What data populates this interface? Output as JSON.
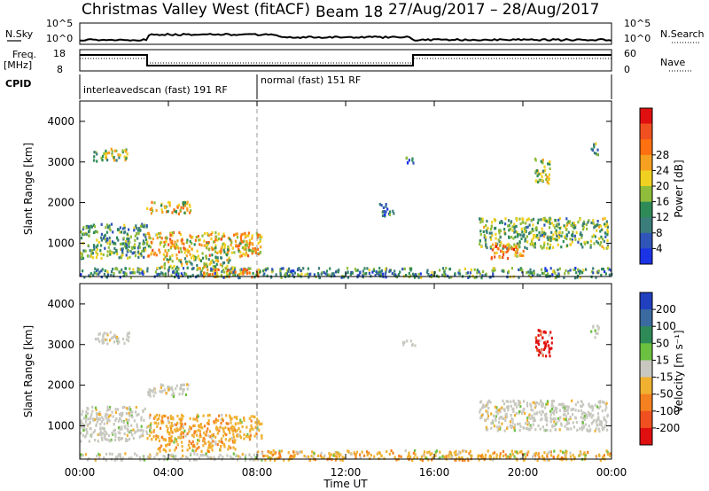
{
  "header": {
    "title": "Christmas Valley West (fitACF)",
    "beam": "Beam 18",
    "date_range": "27/Aug/2017 – 28/Aug/2017"
  },
  "summary_panels": {
    "nsky_label": "N.Sky",
    "nsky_ticks": [
      "10^5",
      "10^0"
    ],
    "nsearch_label": "N.Search",
    "nsearch_ticks": [
      "10^5",
      "10^0"
    ],
    "freq_label": [
      "Freq.",
      "[MHz]"
    ],
    "freq_ticks": [
      "18",
      "8"
    ],
    "nave_label": "Nave",
    "nave_ticks": [
      "60",
      "0"
    ],
    "cpid_label": "CPID",
    "cpid_modes": [
      {
        "label": "interleavedscan (fast) 191 RF",
        "start_hour": 0,
        "end_hour": 8
      },
      {
        "label": "normal (fast) 151 RF",
        "start_hour": 8,
        "end_hour": 24
      }
    ]
  },
  "chart_data": [
    {
      "type": "heatmap",
      "name": "power",
      "ylabel": "Slant Range [km]",
      "xlabel": "",
      "ylim": [
        180,
        4500
      ],
      "xlim_hours": [
        0,
        24
      ],
      "yticks": [
        1000,
        2000,
        3000,
        4000
      ],
      "colorbar": {
        "title": "Power [dB]",
        "ticks": [
          "4",
          "8",
          "12",
          "16",
          "20",
          "24",
          "28"
        ],
        "colors": [
          "#1a33e6",
          "#2f55b8",
          "#3a7d7a",
          "#2e8b57",
          "#8fbc3a",
          "#f0d020",
          "#f5a020",
          "#ff7010",
          "#f05020",
          "#e01010"
        ]
      },
      "regions": [
        {
          "t0": 0.6,
          "t1": 2.2,
          "r0": 3050,
          "r1": 3350,
          "level": 0.45
        },
        {
          "t0": 0.0,
          "t1": 3.0,
          "r0": 650,
          "r1": 1500,
          "level": 0.35
        },
        {
          "t0": 3.0,
          "t1": 8.2,
          "r0": 700,
          "r1": 1300,
          "level": 0.6
        },
        {
          "t0": 3.0,
          "t1": 5.0,
          "r0": 1750,
          "r1": 2050,
          "level": 0.55
        },
        {
          "t0": 3.5,
          "t1": 7.0,
          "r0": 400,
          "r1": 700,
          "level": 0.45
        },
        {
          "t0": 0.0,
          "t1": 24.0,
          "r0": 180,
          "r1": 420,
          "level": 0.3
        },
        {
          "t0": 5.5,
          "t1": 8.2,
          "r0": 200,
          "r1": 400,
          "level": 0.65
        },
        {
          "t0": 14.5,
          "t1": 15.1,
          "r0": 3000,
          "r1": 3150,
          "level": 0.3
        },
        {
          "t0": 13.5,
          "t1": 14.2,
          "r0": 1700,
          "r1": 2000,
          "level": 0.25
        },
        {
          "t0": 18.0,
          "t1": 23.8,
          "r0": 900,
          "r1": 1650,
          "level": 0.4
        },
        {
          "t0": 18.5,
          "t1": 20.0,
          "r0": 650,
          "r1": 1000,
          "level": 0.7
        },
        {
          "t0": 20.5,
          "t1": 21.2,
          "r0": 2500,
          "r1": 3200,
          "level": 0.45
        },
        {
          "t0": 23.0,
          "t1": 23.4,
          "r0": 3200,
          "r1": 3500,
          "level": 0.3
        }
      ]
    },
    {
      "type": "heatmap",
      "name": "velocity",
      "ylabel": "Slant Range [km]",
      "xlabel": "Time UT",
      "ylim": [
        180,
        4500
      ],
      "xlim_hours": [
        0,
        24
      ],
      "yticks": [
        1000,
        2000,
        3000,
        4000
      ],
      "xticks": [
        "00:00",
        "04:00",
        "08:00",
        "12:00",
        "16:00",
        "20:00",
        "00:00"
      ],
      "colorbar": {
        "title": "Velocity [m s⁻¹]",
        "ticks": [
          "200",
          "100",
          "50",
          "15",
          "-15",
          "-50",
          "-100",
          "-200"
        ],
        "colors": [
          "#2040c0",
          "#3a6aa0",
          "#2e8b57",
          "#6cc040",
          "#c8c8c0",
          "#f0b030",
          "#f58020",
          "#f05020",
          "#e01010"
        ]
      },
      "regions": [
        {
          "t0": 0.6,
          "t1": 2.2,
          "r0": 3050,
          "r1": 3350,
          "kind": "gray"
        },
        {
          "t0": 0.0,
          "t1": 3.0,
          "r0": 650,
          "r1": 1500,
          "kind": "gray"
        },
        {
          "t0": 3.0,
          "t1": 8.2,
          "r0": 700,
          "r1": 1300,
          "kind": "orange"
        },
        {
          "t0": 3.0,
          "t1": 5.0,
          "r0": 1750,
          "r1": 2050,
          "kind": "gray"
        },
        {
          "t0": 3.5,
          "t1": 7.0,
          "r0": 400,
          "r1": 700,
          "kind": "orange"
        },
        {
          "t0": 8.0,
          "t1": 24.0,
          "r0": 180,
          "r1": 420,
          "kind": "orange"
        },
        {
          "t0": 0.0,
          "t1": 8.0,
          "r0": 180,
          "r1": 350,
          "kind": "gray"
        },
        {
          "t0": 14.5,
          "t1": 15.1,
          "r0": 3000,
          "r1": 3150,
          "kind": "gray"
        },
        {
          "t0": 18.0,
          "t1": 23.8,
          "r0": 900,
          "r1": 1650,
          "kind": "gray"
        },
        {
          "t0": 20.5,
          "t1": 21.3,
          "r0": 2700,
          "r1": 3400,
          "kind": "red"
        },
        {
          "t0": 23.0,
          "t1": 23.4,
          "r0": 3200,
          "r1": 3500,
          "kind": "gray"
        }
      ]
    }
  ]
}
